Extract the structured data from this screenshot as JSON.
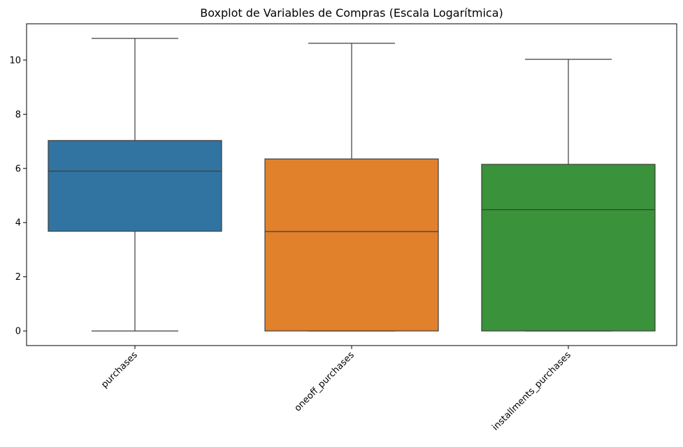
{
  "chart_data": {
    "type": "boxplot",
    "title": "Boxplot de Variables de Compras (Escala Logarítmica)",
    "xlabel": "",
    "ylabel": "",
    "categories": [
      "purchases",
      "oneoff_purchases",
      "installments_purchases"
    ],
    "colors": [
      "#3274a1",
      "#e1812c",
      "#3a923a"
    ],
    "series": [
      {
        "category": "purchases",
        "whisker_low": 0.0,
        "q1": 3.68,
        "median": 5.9,
        "q3": 7.03,
        "whisker_high": 10.8
      },
      {
        "category": "oneoff_purchases",
        "whisker_low": 0.0,
        "q1": 0.0,
        "median": 3.67,
        "q3": 6.35,
        "whisker_high": 10.62
      },
      {
        "category": "installments_purchases",
        "whisker_low": 0.0,
        "q1": 0.0,
        "median": 4.48,
        "q3": 6.15,
        "whisker_high": 10.03
      }
    ],
    "ylim": [
      -0.54,
      11.34
    ],
    "yticks": [
      0,
      2,
      4,
      6,
      8,
      10
    ],
    "x_tick_rotation": 45,
    "grid": false,
    "legend": "none"
  }
}
